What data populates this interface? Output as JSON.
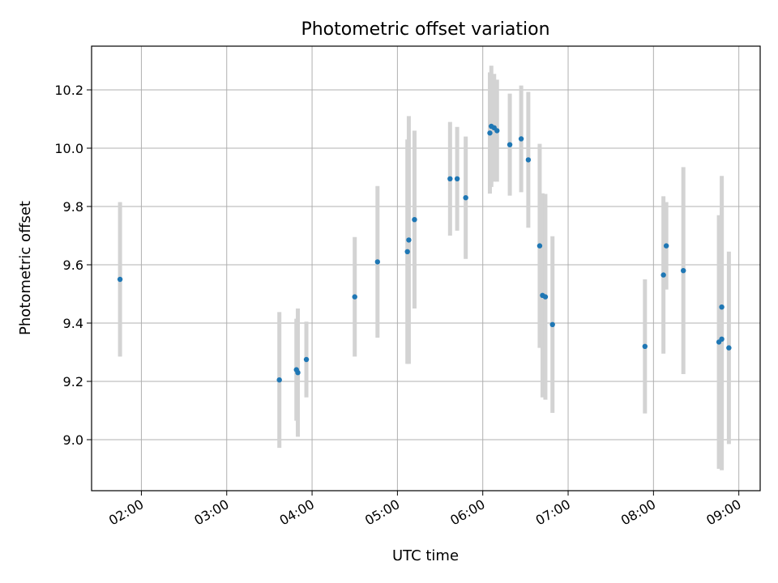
{
  "chart_data": {
    "type": "scatter",
    "title": "Photometric offset variation",
    "xlabel": "UTC time",
    "ylabel": "Photometric offset",
    "grid": true,
    "xlim": [
      "01:25",
      "09:15"
    ],
    "ylim": [
      8.825,
      10.35
    ],
    "x_ticks": [
      "02:00",
      "03:00",
      "04:00",
      "05:00",
      "06:00",
      "07:00",
      "08:00",
      "09:00"
    ],
    "y_ticks": [
      "9.0",
      "9.2",
      "9.4",
      "9.6",
      "9.8",
      "10.0",
      "10.2"
    ],
    "marker_color": "#1f77b4",
    "errorbar_color": "#d3d3d3",
    "points": [
      {
        "x": "01:45",
        "y": 9.55,
        "err": 0.265
      },
      {
        "x": "03:37",
        "y": 9.205,
        "err": 0.233
      },
      {
        "x": "03:49",
        "y": 9.24,
        "err": 0.175
      },
      {
        "x": "03:50",
        "y": 9.23,
        "err": 0.22
      },
      {
        "x": "03:56",
        "y": 9.275,
        "err": 0.13
      },
      {
        "x": "04:30",
        "y": 9.49,
        "err": 0.205
      },
      {
        "x": "04:46",
        "y": 9.61,
        "err": 0.26
      },
      {
        "x": "05:07",
        "y": 9.645,
        "err": 0.385
      },
      {
        "x": "05:08",
        "y": 9.685,
        "err": 0.425
      },
      {
        "x": "05:12",
        "y": 9.755,
        "err": 0.305
      },
      {
        "x": "05:37",
        "y": 9.895,
        "err": 0.195
      },
      {
        "x": "05:42",
        "y": 9.895,
        "err": 0.178
      },
      {
        "x": "05:48",
        "y": 9.83,
        "err": 0.21
      },
      {
        "x": "06:05",
        "y": 10.052,
        "err": 0.208
      },
      {
        "x": "06:06",
        "y": 10.075,
        "err": 0.208
      },
      {
        "x": "06:08",
        "y": 10.07,
        "err": 0.185
      },
      {
        "x": "06:10",
        "y": 10.06,
        "err": 0.175
      },
      {
        "x": "06:19",
        "y": 10.012,
        "err": 0.175
      },
      {
        "x": "06:27",
        "y": 10.032,
        "err": 0.183
      },
      {
        "x": "06:32",
        "y": 9.96,
        "err": 0.233
      },
      {
        "x": "06:40",
        "y": 9.665,
        "err": 0.35
      },
      {
        "x": "06:42",
        "y": 9.495,
        "err": 0.35
      },
      {
        "x": "06:44",
        "y": 9.49,
        "err": 0.353
      },
      {
        "x": "06:49",
        "y": 9.395,
        "err": 0.303
      },
      {
        "x": "07:54",
        "y": 9.32,
        "err": 0.23
      },
      {
        "x": "08:07",
        "y": 9.565,
        "err": 0.27
      },
      {
        "x": "08:09",
        "y": 9.665,
        "err": 0.15
      },
      {
        "x": "08:21",
        "y": 9.58,
        "err": 0.355
      },
      {
        "x": "08:46",
        "y": 9.335,
        "err": 0.435
      },
      {
        "x": "08:48",
        "y": 9.345,
        "err": 0.45
      },
      {
        "x": "08:48",
        "y": 9.455,
        "err": 0.45
      },
      {
        "x": "08:53",
        "y": 9.315,
        "err": 0.33
      }
    ]
  }
}
